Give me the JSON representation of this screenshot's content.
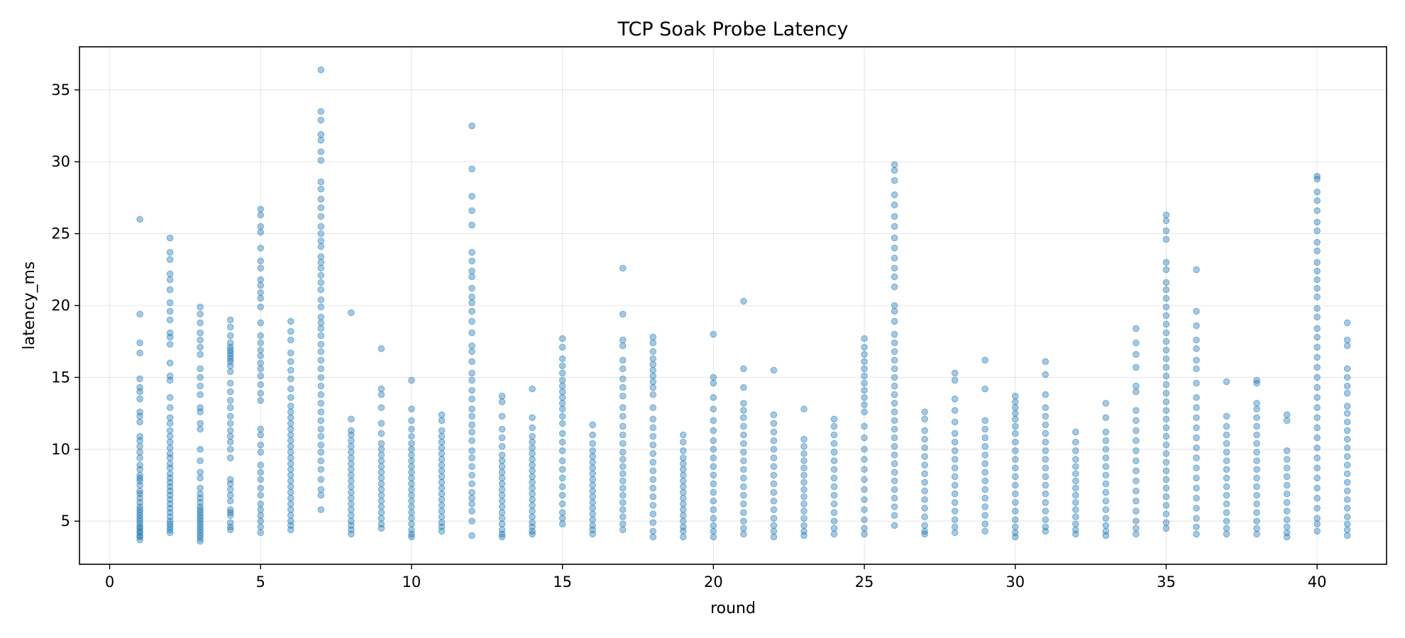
{
  "chart_data": {
    "type": "scatter",
    "title": "TCP Soak Probe Latency",
    "xlabel": "round",
    "ylabel": "latency_ms",
    "xlim": [
      -1,
      42.3
    ],
    "ylim": [
      2,
      38
    ],
    "xticks": [
      0,
      5,
      10,
      15,
      20,
      25,
      30,
      35,
      40
    ],
    "yticks": [
      5,
      10,
      15,
      20,
      25,
      30,
      35
    ],
    "grid": true,
    "color": "#1f77b4",
    "marker_alpha": 0.4,
    "rounds": [
      {
        "round": 1,
        "latency_ms": [
          26.0,
          19.4,
          17.4,
          16.7,
          14.9,
          14.3,
          14.0,
          13.5,
          12.6,
          12.3,
          11.9,
          10.9,
          10.6,
          10.2,
          9.8,
          9.4,
          8.9,
          8.6,
          8.2,
          8.0,
          7.8,
          7.5,
          7.1,
          6.9,
          6.6,
          6.3,
          6.0,
          5.8,
          5.6,
          5.4,
          5.2,
          5.0,
          4.8,
          4.6,
          4.5,
          4.3,
          4.2,
          4.0,
          3.9,
          3.7
        ]
      },
      {
        "round": 2,
        "latency_ms": [
          24.7,
          23.7,
          23.2,
          22.2,
          21.8,
          21.1,
          20.2,
          19.6,
          19.0,
          18.1,
          17.8,
          17.3,
          16.0,
          15.1,
          14.8,
          13.6,
          12.9,
          12.2,
          11.8,
          11.3,
          10.9,
          10.5,
          10.1,
          9.7,
          9.4,
          9.0,
          8.7,
          8.3,
          8.0,
          7.7,
          7.4,
          7.1,
          6.8,
          6.5,
          6.2,
          5.9,
          5.6,
          5.3,
          5.0,
          4.8,
          4.6,
          4.4,
          4.2
        ]
      },
      {
        "round": 3,
        "latency_ms": [
          19.9,
          19.4,
          18.8,
          18.1,
          17.6,
          17.1,
          16.6,
          15.6,
          15.0,
          14.4,
          13.8,
          12.9,
          12.6,
          11.8,
          11.4,
          10.0,
          9.2,
          8.4,
          8.0,
          7.3,
          6.9,
          6.6,
          6.3,
          6.0,
          5.8,
          5.6,
          5.4,
          5.2,
          5.0,
          4.8,
          4.6,
          4.4,
          4.2,
          4.0,
          3.8,
          3.6
        ]
      },
      {
        "round": 4,
        "latency_ms": [
          19.0,
          18.5,
          17.9,
          17.4,
          17.1,
          16.9,
          16.7,
          16.5,
          16.3,
          16.1,
          15.8,
          15.4,
          14.6,
          14.0,
          13.4,
          12.9,
          12.3,
          11.8,
          11.3,
          10.9,
          10.5,
          10.0,
          9.4,
          7.9,
          7.6,
          7.2,
          6.8,
          6.4,
          5.8,
          5.6,
          5.4,
          4.9,
          4.6,
          4.4
        ]
      },
      {
        "round": 5,
        "latency_ms": [
          26.7,
          26.3,
          25.5,
          25.1,
          24.0,
          23.1,
          22.6,
          21.8,
          21.4,
          20.9,
          20.5,
          19.9,
          18.8,
          17.9,
          17.4,
          16.9,
          16.5,
          16.0,
          15.6,
          15.1,
          14.5,
          13.9,
          13.4,
          11.4,
          11.0,
          10.3,
          9.8,
          8.9,
          8.4,
          7.9,
          7.3,
          6.8,
          6.2,
          5.8,
          5.4,
          5.0,
          4.6,
          4.2
        ]
      },
      {
        "round": 6,
        "latency_ms": [
          18.9,
          18.2,
          17.6,
          16.7,
          16.1,
          15.5,
          14.9,
          14.2,
          13.6,
          13.0,
          12.6,
          12.2,
          11.8,
          11.4,
          11.0,
          10.6,
          10.2,
          9.8,
          9.4,
          9.0,
          8.6,
          8.2,
          7.8,
          7.4,
          7.0,
          6.6,
          6.2,
          5.8,
          5.4,
          5.0,
          4.7,
          4.4
        ]
      },
      {
        "round": 7,
        "latency_ms": [
          36.4,
          33.5,
          32.9,
          31.9,
          31.5,
          30.7,
          30.1,
          28.6,
          28.1,
          27.4,
          26.8,
          26.2,
          25.5,
          25.0,
          24.5,
          24.1,
          23.4,
          23.0,
          22.6,
          22.1,
          21.6,
          21.1,
          20.4,
          19.9,
          19.2,
          18.8,
          18.4,
          17.9,
          17.3,
          16.8,
          16.2,
          15.6,
          15.0,
          14.4,
          13.8,
          13.2,
          12.6,
          12.0,
          11.4,
          10.9,
          10.3,
          9.8,
          9.2,
          8.6,
          7.9,
          7.2,
          6.8,
          5.8
        ]
      },
      {
        "round": 8,
        "latency_ms": [
          19.5,
          12.1,
          11.3,
          11.0,
          10.6,
          10.2,
          9.8,
          9.4,
          9.0,
          8.6,
          8.2,
          7.8,
          7.4,
          7.0,
          6.6,
          6.2,
          5.8,
          5.4,
          5.0,
          4.7,
          4.4,
          4.1
        ]
      },
      {
        "round": 9,
        "latency_ms": [
          17.0,
          14.2,
          13.8,
          12.9,
          11.8,
          11.1,
          10.4,
          10.0,
          9.6,
          9.2,
          8.8,
          8.4,
          8.0,
          7.6,
          7.2,
          6.8,
          6.4,
          6.0,
          5.6,
          5.2,
          4.8,
          4.5
        ]
      },
      {
        "round": 10,
        "latency_ms": [
          14.8,
          12.8,
          12.0,
          11.4,
          10.9,
          10.4,
          10.0,
          9.6,
          9.2,
          8.8,
          8.4,
          8.0,
          7.6,
          7.2,
          6.8,
          6.4,
          6.0,
          5.6,
          5.2,
          4.8,
          4.4,
          4.1,
          3.9
        ]
      },
      {
        "round": 11,
        "latency_ms": [
          12.4,
          12.0,
          11.3,
          10.9,
          10.5,
          10.1,
          9.7,
          9.3,
          8.9,
          8.5,
          8.1,
          7.7,
          7.3,
          6.9,
          6.5,
          6.1,
          5.7,
          5.3,
          4.9,
          4.6,
          4.3
        ]
      },
      {
        "round": 12,
        "latency_ms": [
          32.5,
          29.5,
          27.6,
          26.6,
          25.6,
          23.7,
          23.1,
          22.4,
          22.0,
          21.2,
          20.6,
          20.2,
          19.6,
          18.9,
          18.1,
          17.2,
          16.8,
          16.1,
          15.3,
          14.8,
          14.1,
          13.5,
          12.8,
          12.3,
          11.7,
          11.2,
          10.6,
          9.9,
          9.4,
          8.8,
          8.2,
          7.6,
          7.0,
          6.6,
          6.2,
          5.7,
          5.0,
          4.0
        ]
      },
      {
        "round": 13,
        "latency_ms": [
          13.7,
          13.3,
          12.3,
          11.4,
          10.8,
          10.2,
          9.6,
          9.2,
          8.8,
          8.4,
          8.0,
          7.6,
          7.2,
          6.8,
          6.4,
          6.0,
          5.6,
          5.2,
          4.8,
          4.4,
          4.1,
          3.9
        ]
      },
      {
        "round": 14,
        "latency_ms": [
          14.2,
          12.2,
          11.5,
          10.9,
          10.5,
          10.1,
          9.7,
          9.3,
          8.9,
          8.5,
          8.1,
          7.7,
          7.3,
          6.9,
          6.5,
          6.1,
          5.7,
          5.3,
          4.9,
          4.6,
          4.3,
          4.1
        ]
      },
      {
        "round": 15,
        "latency_ms": [
          17.7,
          17.1,
          16.3,
          15.8,
          15.3,
          14.8,
          14.4,
          14.0,
          13.6,
          13.2,
          12.8,
          12.3,
          11.8,
          11.1,
          10.5,
          9.9,
          9.2,
          8.6,
          8.0,
          7.4,
          6.8,
          6.2,
          5.6,
          5.2,
          4.8
        ]
      },
      {
        "round": 16,
        "latency_ms": [
          11.7,
          11.0,
          10.4,
          9.9,
          9.5,
          9.1,
          8.7,
          8.3,
          7.9,
          7.5,
          7.1,
          6.7,
          6.3,
          5.9,
          5.5,
          5.1,
          4.7,
          4.4,
          4.1
        ]
      },
      {
        "round": 17,
        "latency_ms": [
          22.6,
          19.4,
          17.6,
          17.2,
          16.2,
          15.6,
          14.9,
          14.3,
          13.7,
          12.9,
          12.3,
          11.6,
          11.0,
          10.4,
          9.8,
          9.3,
          8.8,
          8.3,
          7.8,
          7.3,
          6.8,
          6.3,
          5.8,
          5.3,
          4.8,
          4.4
        ]
      },
      {
        "round": 18,
        "latency_ms": [
          17.8,
          17.4,
          16.8,
          16.3,
          15.9,
          15.5,
          15.1,
          14.7,
          14.3,
          13.8,
          12.9,
          12.1,
          11.5,
          10.9,
          10.3,
          9.7,
          9.1,
          8.5,
          7.9,
          7.3,
          6.7,
          6.1,
          5.5,
          4.9,
          4.3,
          3.9
        ]
      },
      {
        "round": 19,
        "latency_ms": [
          11.0,
          10.5,
          9.9,
          9.4,
          9.0,
          8.6,
          8.2,
          7.8,
          7.4,
          7.0,
          6.6,
          6.2,
          5.8,
          5.4,
          5.0,
          4.6,
          4.3,
          3.9
        ]
      },
      {
        "round": 20,
        "latency_ms": [
          18.0,
          15.0,
          14.6,
          13.6,
          12.8,
          12.0,
          11.3,
          10.6,
          10.0,
          9.4,
          8.8,
          8.2,
          7.6,
          7.0,
          6.4,
          5.8,
          5.2,
          4.7,
          4.3,
          3.9
        ]
      },
      {
        "round": 21,
        "latency_ms": [
          20.3,
          15.6,
          14.3,
          13.2,
          12.7,
          12.2,
          11.6,
          11.0,
          10.4,
          9.8,
          9.2,
          8.6,
          8.0,
          7.4,
          6.8,
          6.2,
          5.6,
          5.0,
          4.5,
          4.1
        ]
      },
      {
        "round": 22,
        "latency_ms": [
          15.5,
          12.4,
          11.8,
          11.2,
          10.6,
          10.0,
          9.4,
          8.8,
          8.2,
          7.6,
          7.0,
          6.4,
          5.8,
          5.2,
          4.7,
          4.3,
          3.9
        ]
      },
      {
        "round": 23,
        "latency_ms": [
          12.8,
          10.7,
          10.2,
          9.7,
          9.2,
          8.7,
          8.2,
          7.7,
          7.2,
          6.7,
          6.2,
          5.7,
          5.2,
          4.7,
          4.3,
          4.0
        ]
      },
      {
        "round": 24,
        "latency_ms": [
          12.1,
          11.6,
          11.0,
          10.4,
          9.8,
          9.2,
          8.6,
          8.0,
          7.4,
          6.8,
          6.2,
          5.6,
          5.0,
          4.5,
          4.1
        ]
      },
      {
        "round": 25,
        "latency_ms": [
          17.7,
          17.1,
          16.6,
          16.1,
          15.6,
          15.1,
          14.6,
          14.1,
          13.6,
          13.1,
          12.6,
          11.6,
          10.8,
          10.0,
          9.3,
          8.6,
          7.9,
          7.2,
          6.5,
          5.8,
          5.1,
          4.5,
          4.1
        ]
      },
      {
        "round": 26,
        "latency_ms": [
          29.8,
          29.4,
          28.7,
          27.7,
          27.0,
          26.2,
          25.5,
          24.7,
          24.0,
          23.3,
          22.6,
          22.0,
          21.3,
          20.0,
          19.6,
          18.9,
          18.0,
          17.4,
          16.8,
          16.2,
          15.6,
          15.0,
          14.4,
          13.8,
          13.2,
          12.6,
          12.0,
          11.4,
          10.8,
          10.2,
          9.6,
          9.0,
          8.4,
          7.8,
          7.2,
          6.6,
          6.0,
          5.4,
          4.7
        ]
      },
      {
        "round": 27,
        "latency_ms": [
          12.6,
          12.1,
          11.3,
          10.7,
          10.1,
          9.5,
          8.9,
          8.3,
          7.7,
          7.1,
          6.5,
          5.9,
          5.3,
          4.7,
          4.3,
          4.1
        ]
      },
      {
        "round": 28,
        "latency_ms": [
          15.3,
          14.8,
          13.5,
          12.7,
          11.9,
          11.1,
          10.5,
          9.9,
          9.3,
          8.7,
          8.1,
          7.5,
          6.9,
          6.3,
          5.7,
          5.1,
          4.6,
          4.2
        ]
      },
      {
        "round": 29,
        "latency_ms": [
          16.2,
          14.2,
          12.0,
          11.4,
          10.8,
          10.2,
          9.6,
          9.0,
          8.4,
          7.8,
          7.2,
          6.6,
          6.0,
          5.4,
          4.8,
          4.3
        ]
      },
      {
        "round": 30,
        "latency_ms": [
          13.7,
          13.3,
          12.9,
          12.5,
          12.1,
          11.6,
          11.1,
          10.5,
          9.9,
          9.3,
          8.7,
          8.1,
          7.5,
          6.9,
          6.3,
          5.7,
          5.1,
          4.6,
          4.2,
          3.9
        ]
      },
      {
        "round": 31,
        "latency_ms": [
          16.1,
          15.2,
          13.8,
          12.9,
          12.3,
          11.7,
          11.1,
          10.5,
          9.9,
          9.3,
          8.7,
          8.1,
          7.5,
          6.9,
          6.3,
          5.7,
          5.1,
          4.6,
          4.3
        ]
      },
      {
        "round": 32,
        "latency_ms": [
          11.2,
          10.5,
          9.9,
          9.3,
          8.8,
          8.3,
          7.8,
          7.3,
          6.8,
          6.3,
          5.8,
          5.3,
          4.8,
          4.4,
          4.1
        ]
      },
      {
        "round": 33,
        "latency_ms": [
          13.2,
          12.2,
          11.2,
          10.6,
          10.0,
          9.4,
          8.8,
          8.2,
          7.6,
          7.0,
          6.4,
          5.8,
          5.2,
          4.7,
          4.3,
          4.0
        ]
      },
      {
        "round": 34,
        "latency_ms": [
          18.4,
          17.4,
          16.6,
          15.7,
          14.4,
          14.0,
          12.7,
          12.0,
          11.3,
          10.6,
          9.9,
          9.2,
          8.5,
          7.8,
          7.1,
          6.4,
          5.7,
          5.0,
          4.5,
          4.1
        ]
      },
      {
        "round": 35,
        "latency_ms": [
          26.3,
          25.9,
          25.2,
          24.6,
          23.0,
          22.5,
          21.6,
          21.1,
          20.5,
          19.9,
          19.3,
          18.7,
          18.1,
          17.5,
          16.9,
          16.3,
          15.7,
          15.1,
          14.5,
          13.9,
          13.3,
          12.7,
          12.1,
          11.5,
          10.9,
          10.3,
          9.7,
          9.1,
          8.5,
          7.9,
          7.3,
          6.7,
          6.1,
          5.5,
          4.9,
          4.5
        ]
      },
      {
        "round": 36,
        "latency_ms": [
          22.5,
          19.6,
          18.6,
          17.6,
          17.0,
          16.2,
          15.6,
          14.6,
          13.6,
          12.9,
          12.2,
          11.5,
          10.8,
          10.1,
          9.4,
          8.7,
          8.0,
          7.3,
          6.6,
          5.9,
          5.2,
          4.6,
          4.1
        ]
      },
      {
        "round": 37,
        "latency_ms": [
          14.7,
          12.3,
          11.6,
          11.0,
          10.4,
          9.8,
          9.2,
          8.6,
          8.0,
          7.4,
          6.8,
          6.2,
          5.6,
          5.0,
          4.5,
          4.1
        ]
      },
      {
        "round": 38,
        "latency_ms": [
          14.8,
          14.6,
          13.2,
          12.8,
          12.2,
          11.6,
          11.0,
          10.4,
          9.8,
          9.2,
          8.6,
          8.0,
          7.4,
          6.8,
          6.2,
          5.6,
          5.0,
          4.5,
          4.1
        ]
      },
      {
        "round": 39,
        "latency_ms": [
          12.4,
          12.0,
          9.9,
          9.3,
          8.7,
          8.1,
          7.5,
          6.9,
          6.3,
          5.7,
          5.1,
          4.6,
          4.2,
          3.9
        ]
      },
      {
        "round": 40,
        "latency_ms": [
          29.0,
          28.8,
          27.9,
          27.3,
          26.6,
          25.8,
          25.2,
          24.4,
          23.8,
          23.0,
          22.4,
          21.8,
          21.2,
          20.6,
          19.8,
          19.2,
          18.4,
          17.8,
          17.1,
          16.4,
          15.7,
          15.0,
          14.3,
          13.6,
          12.9,
          12.2,
          11.5,
          10.8,
          10.1,
          9.4,
          8.7,
          8.0,
          7.3,
          6.6,
          5.9,
          5.2,
          4.8,
          4.3
        ]
      },
      {
        "round": 41,
        "latency_ms": [
          18.8,
          17.6,
          17.2,
          15.6,
          15.0,
          14.4,
          13.9,
          13.0,
          12.5,
          11.9,
          11.3,
          10.7,
          10.1,
          9.5,
          8.9,
          8.3,
          7.7,
          7.1,
          6.5,
          5.9,
          5.3,
          4.8,
          4.4,
          4.0
        ]
      }
    ]
  }
}
